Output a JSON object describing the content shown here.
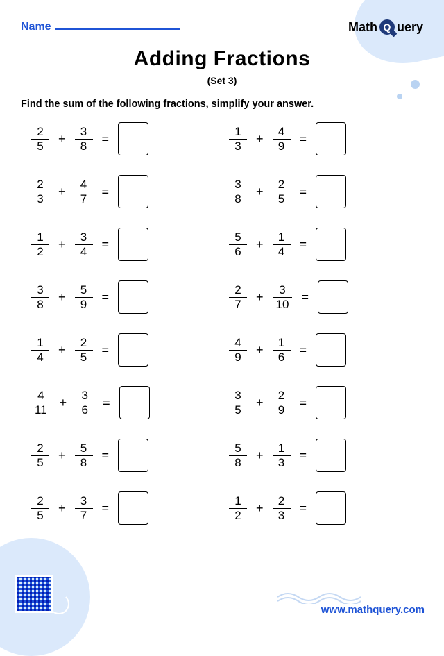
{
  "header": {
    "name_label": "Name",
    "logo_text_1": "Math",
    "logo_q": "Q",
    "logo_text_2": "uery"
  },
  "title": "Adding Fractions",
  "subtitle": "(Set 3)",
  "instructions": "Find the sum of the following fractions, simplify your answer.",
  "colors": {
    "accent_blue": "#1f54d6",
    "light_blue": "#dbe9fb",
    "text": "#000000",
    "background": "#ffffff"
  },
  "problems": [
    {
      "a": {
        "n": "2",
        "d": "5"
      },
      "b": {
        "n": "3",
        "d": "8"
      }
    },
    {
      "a": {
        "n": "1",
        "d": "3"
      },
      "b": {
        "n": "4",
        "d": "9"
      }
    },
    {
      "a": {
        "n": "2",
        "d": "3"
      },
      "b": {
        "n": "4",
        "d": "7"
      }
    },
    {
      "a": {
        "n": "3",
        "d": "8"
      },
      "b": {
        "n": "2",
        "d": "5"
      }
    },
    {
      "a": {
        "n": "1",
        "d": "2"
      },
      "b": {
        "n": "3",
        "d": "4"
      }
    },
    {
      "a": {
        "n": "5",
        "d": "6"
      },
      "b": {
        "n": "1",
        "d": "4"
      }
    },
    {
      "a": {
        "n": "3",
        "d": "8"
      },
      "b": {
        "n": "5",
        "d": "9"
      }
    },
    {
      "a": {
        "n": "2",
        "d": "7"
      },
      "b": {
        "n": "3",
        "d": "10"
      }
    },
    {
      "a": {
        "n": "1",
        "d": "4"
      },
      "b": {
        "n": "2",
        "d": "5"
      }
    },
    {
      "a": {
        "n": "4",
        "d": "9"
      },
      "b": {
        "n": "1",
        "d": "6"
      }
    },
    {
      "a": {
        "n": "4",
        "d": "11"
      },
      "b": {
        "n": "3",
        "d": "6"
      }
    },
    {
      "a": {
        "n": "3",
        "d": "5"
      },
      "b": {
        "n": "2",
        "d": "9"
      }
    },
    {
      "a": {
        "n": "2",
        "d": "5"
      },
      "b": {
        "n": "5",
        "d": "8"
      }
    },
    {
      "a": {
        "n": "5",
        "d": "8"
      },
      "b": {
        "n": "1",
        "d": "3"
      }
    },
    {
      "a": {
        "n": "2",
        "d": "5"
      },
      "b": {
        "n": "3",
        "d": "7"
      }
    },
    {
      "a": {
        "n": "1",
        "d": "2"
      },
      "b": {
        "n": "2",
        "d": "3"
      }
    }
  ],
  "operator": "+",
  "equals": "=",
  "footer_url": "www.mathquery.com"
}
